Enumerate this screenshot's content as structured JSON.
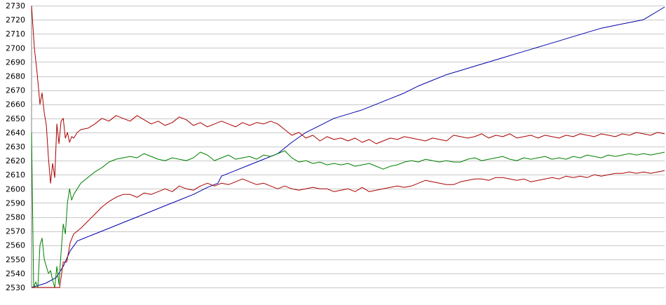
{
  "chart_data": {
    "type": "line",
    "title": "",
    "xlabel": "",
    "ylabel": "",
    "ylim": [
      2530,
      2730
    ],
    "yticks": [
      2530,
      2540,
      2550,
      2560,
      2570,
      2580,
      2590,
      2600,
      2610,
      2620,
      2630,
      2640,
      2650,
      2660,
      2670,
      2680,
      2690,
      2700,
      2710,
      2720,
      2730
    ],
    "xlim": [
      0,
      900
    ],
    "grid": true,
    "legend": "none",
    "series": [
      {
        "color": "#0000aa",
        "x": [
          0,
          20,
          35,
          45,
          55,
          65,
          75,
          90,
          110,
          130,
          150,
          170,
          190,
          210,
          230,
          250,
          265,
          270,
          290,
          310,
          330,
          350,
          370,
          390,
          410,
          430,
          450,
          470,
          490,
          510,
          530,
          550,
          570,
          590,
          610,
          630,
          650,
          670,
          690,
          710,
          730,
          750,
          770,
          790,
          810,
          830,
          850,
          860,
          870,
          880,
          890,
          900
        ],
        "y": [
          2530,
          2533,
          2537,
          2545,
          2556,
          2563,
          2565,
          2568,
          2572,
          2576,
          2580,
          2584,
          2588,
          2592,
          2596,
          2601,
          2604,
          2609,
          2613,
          2617,
          2621,
          2625,
          2633,
          2640,
          2645,
          2650,
          2653,
          2656,
          2660,
          2664,
          2668,
          2673,
          2677,
          2681,
          2684,
          2687,
          2690,
          2693,
          2696,
          2699,
          2702,
          2705,
          2708,
          2711,
          2714,
          2716,
          2718,
          2719,
          2720,
          2723,
          2726,
          2729
        ]
      },
      {
        "color": "#aa0000",
        "x": [
          0,
          4,
          8,
          12,
          15,
          18,
          21,
          24,
          27,
          30,
          33,
          36,
          39,
          42,
          45,
          48,
          51,
          54,
          57,
          60,
          65,
          70,
          80,
          90,
          100,
          110,
          120,
          130,
          140,
          150,
          160,
          170,
          180,
          190,
          200,
          210,
          220,
          230,
          240,
          250,
          260,
          270,
          280,
          290,
          300,
          310,
          320,
          330,
          340,
          350,
          360,
          370,
          380,
          390,
          400,
          410,
          420,
          430,
          440,
          450,
          460,
          470,
          480,
          490,
          500,
          510,
          520,
          530,
          540,
          550,
          560,
          570,
          580,
          590,
          600,
          610,
          620,
          630,
          640,
          650,
          660,
          670,
          680,
          690,
          700,
          710,
          720,
          730,
          740,
          750,
          760,
          770,
          780,
          790,
          800,
          810,
          820,
          830,
          840,
          850,
          860,
          870,
          880,
          890,
          900
        ],
        "y": [
          2730,
          2700,
          2682,
          2660,
          2668,
          2654,
          2645,
          2622,
          2604,
          2618,
          2608,
          2646,
          2632,
          2648,
          2650,
          2636,
          2640,
          2633,
          2637,
          2636,
          2640,
          2642,
          2643,
          2646,
          2650,
          2648,
          2652,
          2650,
          2648,
          2652,
          2649,
          2646,
          2648,
          2645,
          2647,
          2651,
          2649,
          2645,
          2647,
          2644,
          2646,
          2648,
          2646,
          2644,
          2647,
          2645,
          2647,
          2646,
          2648,
          2646,
          2642,
          2638,
          2640,
          2636,
          2638,
          2634,
          2637,
          2635,
          2636,
          2634,
          2636,
          2633,
          2635,
          2632,
          2634,
          2636,
          2635,
          2637,
          2636,
          2635,
          2634,
          2636,
          2635,
          2634,
          2638,
          2637,
          2636,
          2637,
          2639,
          2636,
          2638,
          2637,
          2639,
          2636,
          2637,
          2638,
          2636,
          2638,
          2637,
          2636,
          2638,
          2637,
          2639,
          2638,
          2637,
          2639,
          2638,
          2637,
          2639,
          2638,
          2640,
          2639,
          2638,
          2640,
          2639
        ]
      },
      {
        "color": "#008000",
        "x": [
          0,
          3,
          6,
          9,
          12,
          15,
          18,
          21,
          24,
          27,
          30,
          33,
          36,
          39,
          42,
          45,
          48,
          51,
          54,
          57,
          60,
          65,
          70,
          80,
          90,
          100,
          110,
          120,
          130,
          140,
          150,
          160,
          170,
          180,
          190,
          200,
          210,
          220,
          230,
          240,
          250,
          260,
          270,
          280,
          290,
          300,
          310,
          320,
          330,
          340,
          350,
          360,
          370,
          380,
          390,
          400,
          410,
          420,
          430,
          440,
          450,
          460,
          470,
          480,
          490,
          500,
          510,
          520,
          530,
          540,
          550,
          560,
          570,
          580,
          590,
          600,
          610,
          620,
          630,
          640,
          650,
          660,
          670,
          680,
          690,
          700,
          710,
          720,
          730,
          740,
          750,
          760,
          770,
          780,
          790,
          800,
          810,
          820,
          830,
          840,
          850,
          860,
          870,
          880,
          890,
          900
        ],
        "y": [
          2640,
          2530,
          2534,
          2530,
          2560,
          2565,
          2550,
          2545,
          2540,
          2542,
          2535,
          2530,
          2545,
          2532,
          2555,
          2575,
          2568,
          2590,
          2600,
          2592,
          2596,
          2600,
          2604,
          2608,
          2612,
          2615,
          2619,
          2621,
          2622,
          2623,
          2622,
          2625,
          2623,
          2621,
          2620,
          2622,
          2621,
          2620,
          2622,
          2626,
          2624,
          2620,
          2622,
          2624,
          2621,
          2622,
          2623,
          2621,
          2624,
          2623,
          2625,
          2627,
          2622,
          2619,
          2620,
          2618,
          2619,
          2617,
          2618,
          2617,
          2618,
          2616,
          2617,
          2618,
          2616,
          2614,
          2616,
          2617,
          2619,
          2620,
          2619,
          2621,
          2620,
          2619,
          2620,
          2619,
          2619,
          2621,
          2622,
          2620,
          2621,
          2622,
          2623,
          2621,
          2620,
          2622,
          2621,
          2622,
          2623,
          2621,
          2622,
          2621,
          2623,
          2622,
          2624,
          2623,
          2622,
          2624,
          2623,
          2624,
          2625,
          2624,
          2625,
          2624,
          2625,
          2626
        ]
      },
      {
        "color": "#aa0000",
        "x": [
          0,
          10,
          20,
          30,
          40,
          45,
          50,
          55,
          60,
          65,
          70,
          80,
          90,
          100,
          110,
          120,
          130,
          140,
          150,
          160,
          170,
          180,
          190,
          200,
          210,
          220,
          230,
          240,
          250,
          260,
          270,
          280,
          290,
          300,
          310,
          320,
          330,
          340,
          350,
          360,
          370,
          380,
          390,
          400,
          410,
          420,
          430,
          440,
          450,
          460,
          470,
          480,
          490,
          500,
          510,
          520,
          530,
          540,
          550,
          560,
          570,
          580,
          590,
          600,
          610,
          620,
          630,
          640,
          650,
          660,
          670,
          680,
          690,
          700,
          710,
          720,
          730,
          740,
          750,
          760,
          770,
          780,
          790,
          800,
          810,
          820,
          830,
          840,
          850,
          860,
          870,
          880,
          890,
          900
        ],
        "y": [
          2530,
          2530,
          2530,
          2530,
          2530,
          2548,
          2548,
          2562,
          2568,
          2570,
          2572,
          2577,
          2582,
          2587,
          2591,
          2594,
          2596,
          2596,
          2594,
          2597,
          2596,
          2598,
          2600,
          2598,
          2602,
          2600,
          2599,
          2602,
          2604,
          2602,
          2604,
          2603,
          2605,
          2607,
          2605,
          2603,
          2604,
          2602,
          2600,
          2602,
          2600,
          2599,
          2600,
          2601,
          2600,
          2600,
          2598,
          2599,
          2600,
          2598,
          2601,
          2598,
          2599,
          2600,
          2601,
          2602,
          2601,
          2602,
          2604,
          2606,
          2605,
          2604,
          2603,
          2603,
          2605,
          2606,
          2607,
          2607,
          2606,
          2608,
          2608,
          2607,
          2606,
          2607,
          2605,
          2606,
          2607,
          2608,
          2607,
          2609,
          2608,
          2609,
          2608,
          2610,
          2609,
          2610,
          2611,
          2611,
          2612,
          2611,
          2612,
          2611,
          2612,
          2613
        ]
      }
    ]
  }
}
